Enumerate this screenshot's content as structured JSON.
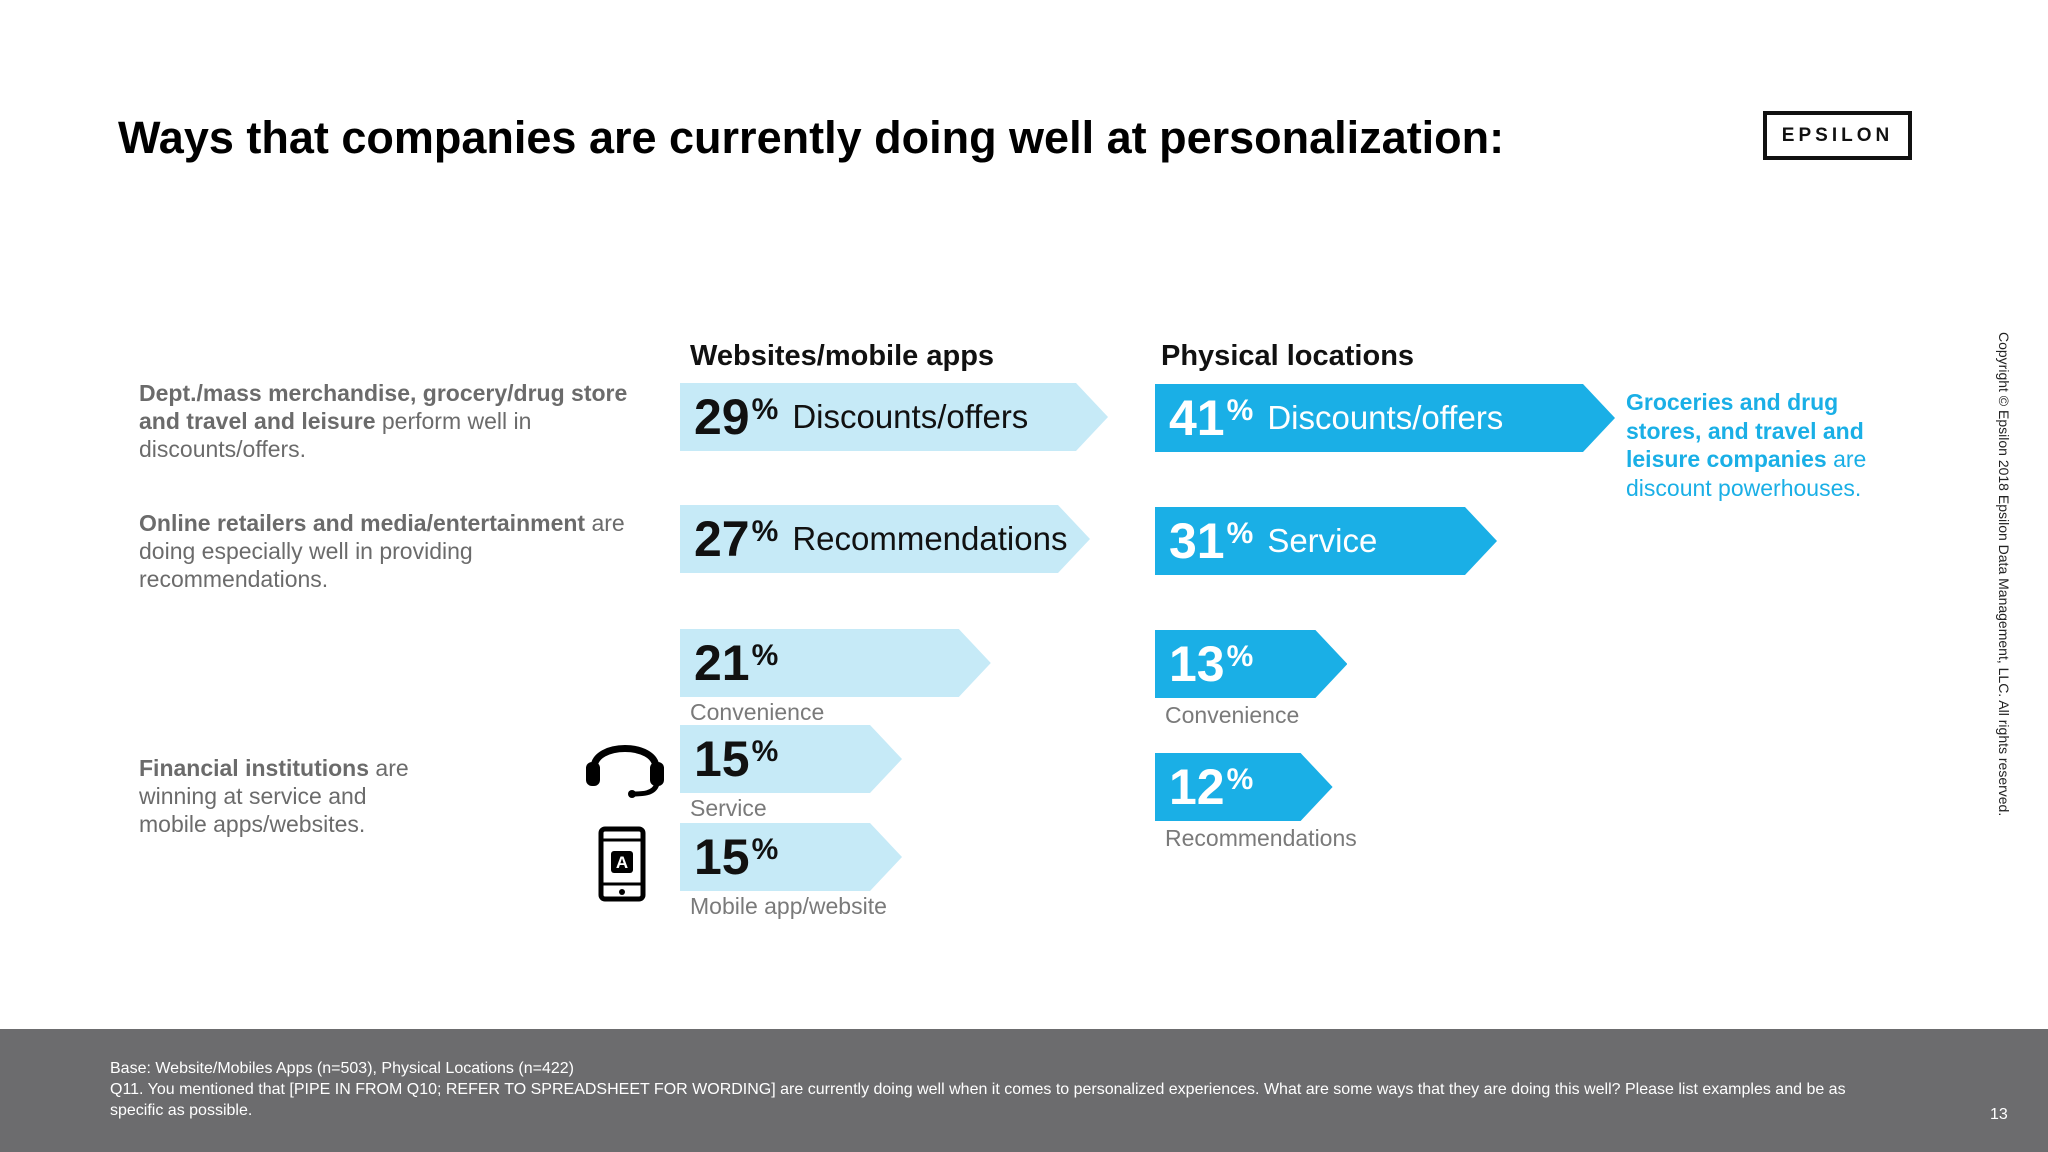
{
  "title": "Ways that companies are currently doing well at personalization:",
  "logo": "EPSILON",
  "colors": {
    "web_bar": "#c6eaf7",
    "physical_bar": "#1aafe6",
    "callout_text": "#1aafe6",
    "footer_bg": "#6c6c6e"
  },
  "notes": [
    {
      "bold": "Dept./mass merchandise, grocery/drug store and travel and leisure",
      "rest": " perform well in discounts/offers."
    },
    {
      "bold": "Online retailers and media/entertainment",
      "rest": " are doing especially well in providing recommendations."
    },
    {
      "bold": "Financial institutions",
      "rest": " are winning at service and mobile apps/websites."
    }
  ],
  "callout": {
    "bold": "Groceries and drug stores, and travel and leisure companies",
    "rest": " are discount powerhouses."
  },
  "icons": {
    "service": "headset-icon",
    "mobile": "mobile-app-icon"
  },
  "chart_data": [
    {
      "type": "bar",
      "title": "Websites/mobile apps",
      "categories": [
        "Discounts/offers",
        "Recommendations",
        "Convenience",
        "Service",
        "Mobile app/website"
      ],
      "values": [
        29,
        27,
        21,
        15,
        15
      ],
      "unit": "%"
    },
    {
      "type": "bar",
      "title": "Physical locations",
      "categories": [
        "Discounts/offers",
        "Service",
        "Convenience",
        "Recommendations"
      ],
      "values": [
        41,
        31,
        13,
        12
      ],
      "unit": "%"
    }
  ],
  "copyright": "Copyright © Epsilon 2018 Epsilon Data Management, LLC. All rights reserved.",
  "footer": {
    "base": "Base: Website/Mobiles Apps (n=503), Physical Locations (n=422)",
    "question": "Q11.  You mentioned that [PIPE IN FROM Q10; REFER TO SPREADSHEET FOR WORDING] are currently doing well when it comes to personalized experiences.  What are some ways that they are doing this well?  Please list examples and be as specific as possible.",
    "page": "13"
  }
}
